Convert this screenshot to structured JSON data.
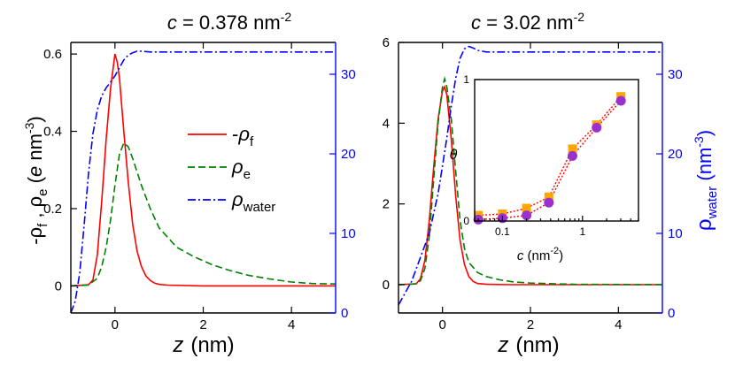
{
  "chart_data": [
    {
      "type": "line",
      "title": "c = 0.378 nm^-2",
      "title_parts": {
        "var": "c",
        "eq": " = 0.378 nm",
        "sup": "-2"
      },
      "xlabel": {
        "var": "z",
        "unit": "(nm)"
      },
      "ylabel_left": {
        "a": "-ρ",
        "a_sub": "f",
        "sep": " , ",
        "b": "ρ",
        "b_sub": "e",
        "unit_open": "  (",
        "e": "e",
        "nm": " nm",
        "sup": "-3",
        "close": ")"
      },
      "xlim": [
        -1,
        5
      ],
      "ylim": [
        -0.07,
        0.63
      ],
      "y2lim": [
        0,
        34
      ],
      "xticks": [
        0,
        2,
        4
      ],
      "yticks": [
        0,
        0.2,
        0.4,
        0.6
      ],
      "y2ticks": [
        0,
        10,
        20,
        30
      ],
      "series": [
        {
          "name": "-ρf",
          "axis": "left",
          "color": "#ff0000",
          "dash": "",
          "x": [
            -1.0,
            -0.6,
            -0.5,
            -0.4,
            -0.3,
            -0.2,
            -0.1,
            0.0,
            0.05,
            0.1,
            0.15,
            0.2,
            0.3,
            0.4,
            0.5,
            0.6,
            0.7,
            0.8,
            0.9,
            1.0,
            1.2,
            2.0,
            3.0,
            4.0,
            5.0
          ],
          "y": [
            0.0,
            0.003,
            0.015,
            0.08,
            0.22,
            0.38,
            0.51,
            0.6,
            0.58,
            0.54,
            0.47,
            0.4,
            0.27,
            0.16,
            0.09,
            0.05,
            0.026,
            0.014,
            0.007,
            0.004,
            0.002,
            0.0,
            0.0,
            0.0,
            0.0
          ]
        },
        {
          "name": "ρe",
          "axis": "left",
          "color": "#008000",
          "dash": "8,4",
          "x": [
            -1.0,
            -0.6,
            -0.4,
            -0.3,
            -0.2,
            -0.1,
            0.0,
            0.1,
            0.2,
            0.3,
            0.4,
            0.6,
            0.8,
            1.0,
            1.4,
            1.8,
            2.2,
            2.6,
            3.0,
            3.5,
            4.0,
            4.5,
            5.0
          ],
          "y": [
            0.0,
            0.002,
            0.02,
            0.05,
            0.1,
            0.17,
            0.26,
            0.34,
            0.37,
            0.36,
            0.33,
            0.26,
            0.2,
            0.15,
            0.1,
            0.075,
            0.055,
            0.04,
            0.028,
            0.018,
            0.01,
            0.006,
            0.005
          ]
        },
        {
          "name": "ρ water",
          "axis": "right",
          "color": "#0000ff",
          "dash": "9,3,2,3",
          "x": [
            -1.0,
            -0.9,
            -0.8,
            -0.7,
            -0.6,
            -0.5,
            -0.4,
            -0.3,
            -0.2,
            -0.1,
            0.0,
            0.1,
            0.2,
            0.3,
            0.4,
            0.5,
            0.6,
            0.8,
            1.0,
            2.0,
            3.0,
            4.0,
            5.0
          ],
          "y": [
            0.0,
            1.5,
            5.0,
            11.0,
            17.5,
            22.5,
            25.5,
            27.3,
            28.3,
            29.0,
            29.8,
            30.8,
            31.8,
            32.4,
            32.7,
            32.9,
            32.9,
            32.8,
            32.8,
            32.8,
            32.8,
            32.8,
            32.8
          ]
        }
      ],
      "legend": [
        {
          "pre": "-",
          "sym": "ρ",
          "sub": "f",
          "color": "#ff0000",
          "dash": ""
        },
        {
          "pre": "",
          "sym": "ρ",
          "sub": "e",
          "color": "#008000",
          "dash": "8,4"
        },
        {
          "pre": "",
          "sym": "ρ",
          "sub": "water",
          "color": "#0000ff",
          "dash": "9,3,2,3"
        }
      ]
    },
    {
      "type": "line",
      "title": "c = 3.02 nm^-2",
      "title_parts": {
        "var": "c",
        "eq": " = 3.02 nm",
        "sup": "-2"
      },
      "xlabel": {
        "var": "z",
        "unit": "(nm)"
      },
      "ylabel_right": {
        "sym": "ρ",
        "sub": "water",
        "unit_open": "  (nm",
        "sup": "-3",
        "close": ")"
      },
      "xlim": [
        -1,
        5
      ],
      "ylim": [
        -0.7,
        6.0
      ],
      "y2lim": [
        0,
        34
      ],
      "xticks": [
        0,
        2,
        4
      ],
      "yticks": [
        0,
        2,
        4,
        6
      ],
      "y2ticks": [
        0,
        10,
        20,
        30
      ],
      "series": [
        {
          "name": "-ρf",
          "axis": "left",
          "color": "#ff0000",
          "dash": "",
          "x": [
            -1.0,
            -0.6,
            -0.5,
            -0.4,
            -0.3,
            -0.2,
            -0.1,
            0.0,
            0.05,
            0.1,
            0.2,
            0.3,
            0.4,
            0.5,
            0.6,
            0.7,
            0.8,
            1.0,
            1.5,
            2.0,
            3.0,
            5.0
          ],
          "y": [
            0.0,
            0.02,
            0.15,
            0.6,
            1.6,
            2.9,
            4.1,
            4.8,
            4.9,
            4.7,
            3.6,
            2.2,
            1.1,
            0.5,
            0.2,
            0.08,
            0.03,
            0.01,
            0.0,
            0.0,
            0.0,
            0.0
          ]
        },
        {
          "name": "ρe",
          "axis": "left",
          "color": "#008000",
          "dash": "8,4",
          "x": [
            -1.0,
            -0.6,
            -0.5,
            -0.4,
            -0.3,
            -0.2,
            -0.1,
            0.0,
            0.05,
            0.1,
            0.2,
            0.3,
            0.4,
            0.5,
            0.6,
            0.8,
            1.0,
            1.3,
            1.6,
            2.0,
            3.0,
            4.0,
            5.0
          ],
          "y": [
            0.0,
            0.02,
            0.1,
            0.4,
            1.2,
            2.6,
            4.0,
            4.9,
            5.1,
            4.9,
            4.1,
            2.8,
            1.6,
            0.9,
            0.55,
            0.3,
            0.2,
            0.12,
            0.07,
            0.04,
            0.01,
            0.005,
            0.0
          ]
        },
        {
          "name": "ρ water",
          "axis": "right",
          "color": "#0000ff",
          "dash": "9,3,2,3",
          "x": [
            -1.0,
            -0.9,
            -0.8,
            -0.7,
            -0.6,
            -0.5,
            -0.4,
            -0.3,
            -0.2,
            -0.1,
            0.0,
            0.1,
            0.2,
            0.3,
            0.4,
            0.5,
            0.6,
            0.7,
            0.8,
            1.0,
            1.5,
            2.0,
            3.0,
            4.0,
            5.0
          ],
          "y": [
            1.0,
            2.0,
            3.0,
            4.0,
            5.5,
            7.0,
            8.5,
            10.0,
            12.5,
            15.0,
            18.5,
            22.0,
            26.0,
            29.5,
            32.0,
            33.2,
            33.5,
            33.3,
            33.0,
            32.8,
            32.8,
            32.8,
            32.8,
            32.8,
            32.8
          ]
        }
      ]
    },
    {
      "type": "scatter",
      "role": "inset",
      "xlabel": {
        "var": "c",
        "unit_open": "  (nm",
        "sup": "-2",
        "close": ")"
      },
      "ylabel": "θ",
      "xscale": "log",
      "xlim": [
        0.045,
        5
      ],
      "ylim": [
        0,
        1
      ],
      "xtick_labels": [
        "0.1",
        "1"
      ],
      "xtick_values": [
        0.1,
        1
      ],
      "ytick_labels": [
        "0",
        "1"
      ],
      "ytick_values": [
        0,
        1
      ],
      "series": [
        {
          "name": "squares",
          "marker": "square",
          "color": "#ffa500",
          "line_color": "#ff0000",
          "x": [
            0.05,
            0.1,
            0.2,
            0.38,
            0.75,
            1.5,
            3.02
          ],
          "y": [
            0.04,
            0.05,
            0.09,
            0.17,
            0.51,
            0.68,
            0.88
          ]
        },
        {
          "name": "circles",
          "marker": "circle",
          "color": "#9a30d0",
          "line_color": "#ff0000",
          "x": [
            0.05,
            0.1,
            0.2,
            0.38,
            0.75,
            1.5,
            3.02
          ],
          "y": [
            0.01,
            0.02,
            0.04,
            0.13,
            0.46,
            0.66,
            0.85
          ]
        }
      ]
    }
  ]
}
